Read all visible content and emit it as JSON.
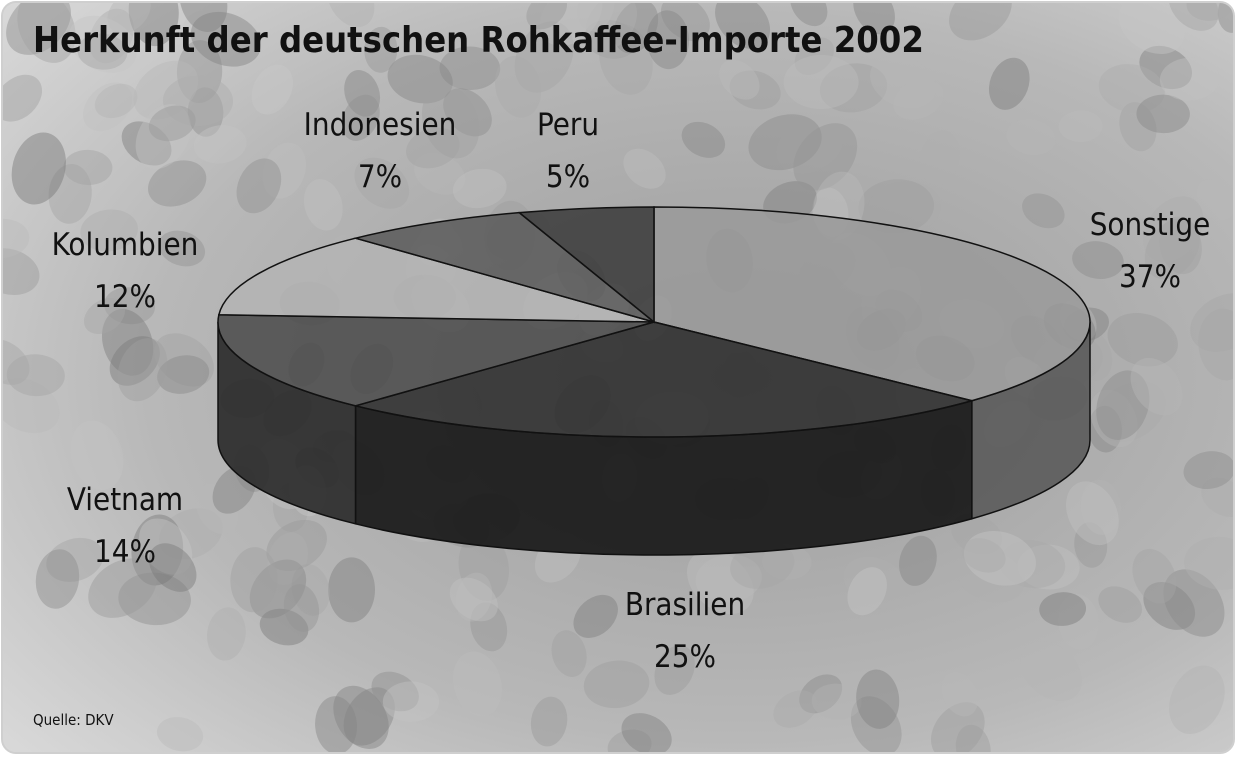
{
  "chart_data": {
    "type": "pie3d",
    "title": "Herkunft der deutschen Rohkaffee-Importe 2002",
    "categories": [
      "Sonstige",
      "Brasilien",
      "Vietnam",
      "Kolumbien",
      "Indonesien",
      "Peru"
    ],
    "values": [
      37,
      25,
      14,
      12,
      7,
      5
    ],
    "value_labels": [
      "37%",
      "25%",
      "14%",
      "12%",
      "7%",
      "5%"
    ],
    "colors": [
      "#9a9a9a",
      "#2a2a2a",
      "#4a4a4a",
      "#b4b4b4",
      "#5a5a5a",
      "#3a3a3a"
    ],
    "source": "Quelle: DKV"
  }
}
